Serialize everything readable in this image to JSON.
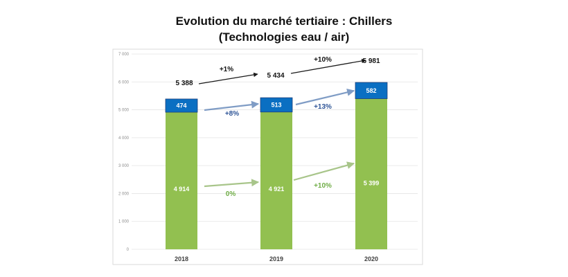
{
  "chart_data": {
    "type": "bar",
    "stacked": true,
    "title": "Evolution du marché tertiaire : Chillers",
    "subtitle": "(Technologies eau / air)",
    "categories": [
      "2018",
      "2019",
      "2020"
    ],
    "ylim": [
      0,
      7000
    ],
    "yticks": [
      "0",
      "1 000",
      "2 000",
      "3 000",
      "4 000",
      "5 000",
      "6 000",
      "7 000"
    ],
    "grid": true,
    "series": [
      {
        "values": [
          4914,
          4921,
          5399
        ],
        "labels": [
          "4 914",
          "4 921",
          "5 399"
        ],
        "color": "#92c050"
      },
      {
        "values": [
          474,
          513,
          582
        ],
        "labels": [
          "474",
          "513",
          "582"
        ],
        "color": "#0a6fc2"
      }
    ],
    "totals": {
      "values": [
        5388,
        5434,
        5981
      ],
      "labels": [
        "5 388",
        "5 434",
        "5 981"
      ]
    },
    "annotations": {
      "total_growth": [
        "+1%",
        "+10%"
      ],
      "top_growth": [
        "+8%",
        "+13%"
      ],
      "bottom_growth": [
        "0%",
        "+10%"
      ]
    },
    "colors": {
      "bottom_series": "#92c050",
      "top_series": "#0a6fc2",
      "total_arrow": "#1a1a1a",
      "top_arrow": "#7f9cc5",
      "bottom_arrow": "#a8c58a"
    }
  }
}
